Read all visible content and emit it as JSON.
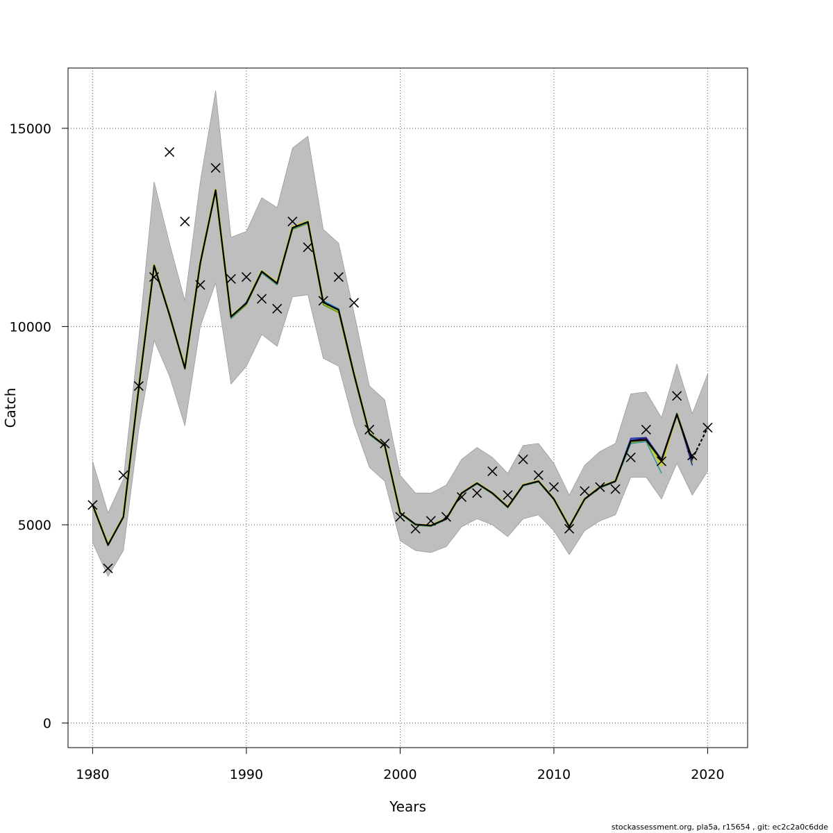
{
  "chart_data": {
    "type": "line",
    "xlabel": "Years",
    "ylabel": "Catch",
    "xlim": [
      1978.4,
      2022.6
    ],
    "ylim": [
      -620,
      16520
    ],
    "x_ticks": [
      1980,
      1990,
      2000,
      2010,
      2020
    ],
    "x_tick_labels": [
      "1980",
      "1990",
      "2000",
      "2010",
      "2020"
    ],
    "y_ticks": [
      0,
      5000,
      10000,
      15000
    ],
    "y_tick_labels": [
      "0",
      "5000",
      "10000",
      "15000"
    ],
    "grid": true,
    "confidence_band": {
      "x": [
        1980,
        1981,
        1982,
        1983,
        1984,
        1985,
        1986,
        1987,
        1988,
        1989,
        1990,
        1991,
        1992,
        1993,
        1994,
        1995,
        1996,
        1997,
        1998,
        1999,
        2000,
        2001,
        2002,
        2003,
        2004,
        2005,
        2006,
        2007,
        2008,
        2009,
        2010,
        2011,
        2012,
        2013,
        2014,
        2015,
        2016,
        2017,
        2018,
        2019,
        2020
      ],
      "lower": [
        4550,
        3700,
        4350,
        7400,
        9650,
        8750,
        7500,
        10000,
        11100,
        8550,
        9000,
        9800,
        9500,
        10750,
        10800,
        9200,
        9000,
        7550,
        6450,
        6100,
        4600,
        4350,
        4300,
        4450,
        4950,
        5150,
        5000,
        4700,
        5150,
        5250,
        4850,
        4250,
        4850,
        5100,
        5250,
        6200,
        6200,
        5650,
        6550,
        5750,
        6350
      ],
      "upper": [
        6600,
        5300,
        6150,
        9700,
        13650,
        12100,
        10650,
        13650,
        15950,
        12250,
        12400,
        13250,
        13000,
        14500,
        14800,
        12450,
        12100,
        10350,
        8500,
        8150,
        6250,
        5800,
        5800,
        6000,
        6650,
        6950,
        6700,
        6300,
        7000,
        7050,
        6550,
        5750,
        6500,
        6850,
        7050,
        8300,
        8350,
        7700,
        9050,
        7800,
        8800
      ]
    },
    "observations": {
      "x": [
        1980,
        1981,
        1982,
        1983,
        1984,
        1985,
        1986,
        1987,
        1988,
        1989,
        1990,
        1991,
        1992,
        1993,
        1994,
        1995,
        1996,
        1997,
        1998,
        1999,
        2000,
        2001,
        2002,
        2003,
        2004,
        2005,
        2006,
        2007,
        2008,
        2009,
        2010,
        2011,
        2012,
        2013,
        2014,
        2015,
        2016,
        2017,
        2018,
        2019,
        2020
      ],
      "y": [
        5500,
        3900,
        6250,
        8500,
        11250,
        14400,
        12650,
        11050,
        14000,
        11200,
        11250,
        10700,
        10450,
        12650,
        12000,
        10650,
        11250,
        10600,
        7400,
        7050,
        5200,
        4900,
        5100,
        5200,
        5700,
        5800,
        6350,
        5750,
        6650,
        6250,
        5950,
        4900,
        5850,
        5950,
        5900,
        6700,
        7400,
        6600,
        8250,
        6750,
        7450
      ]
    },
    "series": [
      {
        "color": "#cccc33",
        "x": [
          1980,
          1981,
          1982,
          1983,
          1984,
          1985,
          1986,
          1987,
          1988,
          1989,
          1990,
          1991,
          1992,
          1993,
          1994,
          1995,
          1996,
          1997,
          1998,
          1999,
          2000,
          2001,
          2002,
          2003,
          2004,
          2005,
          2006,
          2007,
          2008,
          2009,
          2010,
          2011,
          2012,
          2013,
          2014,
          2015,
          2016,
          2017,
          2018,
          2019
        ],
        "y": [
          5500,
          4500,
          5200,
          8450,
          11550,
          10300,
          8950,
          11600,
          13450,
          10250,
          10600,
          11400,
          11100,
          12500,
          12650,
          10600,
          10400,
          8800,
          7300,
          7000,
          5300,
          5000,
          4980,
          5150,
          5800,
          6050,
          5800,
          5450,
          6000,
          6100,
          5650,
          4950,
          5650,
          5950,
          6100,
          7100,
          7150,
          6500,
          7800,
          6550
        ]
      },
      {
        "color": "#669900",
        "x": [
          1980,
          1981,
          1982,
          1983,
          1984,
          1985,
          1986,
          1987,
          1988,
          1989,
          1990,
          1991,
          1992,
          1993,
          1994,
          1995,
          1996,
          1997,
          1998,
          1999,
          2000,
          2001,
          2002,
          2003,
          2004,
          2005,
          2006,
          2007,
          2008,
          2009,
          2010,
          2011,
          2012,
          2013,
          2014,
          2015,
          2016,
          2017,
          2018,
          2019
        ],
        "y": [
          5480,
          4470,
          5180,
          8430,
          11500,
          10260,
          8920,
          11570,
          13400,
          10200,
          10550,
          11350,
          11050,
          12450,
          12600,
          10550,
          10350,
          8750,
          7270,
          6980,
          5280,
          4990,
          4960,
          5130,
          5780,
          6030,
          5780,
          5430,
          5980,
          6080,
          5630,
          4930,
          5630,
          5930,
          6080,
          7060,
          7100,
          6620,
          7780,
          6580
        ]
      },
      {
        "color": "#3399cc",
        "x": [
          1980,
          1981,
          1982,
          1983,
          1984,
          1985,
          1986,
          1987,
          1988,
          1989,
          1990,
          1991,
          1992,
          1993,
          1994,
          1995,
          1996,
          1997,
          1998,
          1999,
          2000,
          2001,
          2002,
          2003,
          2004,
          2005,
          2006,
          2007,
          2008,
          2009,
          2010,
          2011,
          2012,
          2013,
          2014,
          2015,
          2016,
          2017,
          2018,
          2019
        ],
        "y": [
          5490,
          4480,
          5190,
          8440,
          11520,
          10280,
          8930,
          11580,
          13420,
          10230,
          10620,
          11370,
          11070,
          12480,
          12630,
          10650,
          10450,
          8780,
          7290,
          6990,
          5290,
          5000,
          4970,
          5140,
          5790,
          6040,
          5790,
          5440,
          5990,
          6090,
          5640,
          4940,
          5640,
          5940,
          6090,
          7150,
          7180,
          6600,
          7820,
          6500
        ]
      },
      {
        "color": "#339999",
        "x": [
          1980,
          1981,
          1982,
          1983,
          1984,
          1985,
          1986,
          1987,
          1988,
          1989,
          1990,
          1991,
          1992,
          1993,
          1994,
          1995,
          1996,
          1997,
          1998,
          1999,
          2000,
          2001,
          2002,
          2003,
          2004,
          2005,
          2006,
          2007,
          2008,
          2009,
          2010,
          2011,
          2012,
          2013,
          2014,
          2015,
          2016,
          2017
        ],
        "y": [
          5485,
          4475,
          5185,
          8435,
          11510,
          10270,
          8925,
          11575,
          13410,
          10210,
          10580,
          11360,
          11060,
          12470,
          12620,
          10600,
          10400,
          8770,
          7280,
          6985,
          5285,
          4995,
          4965,
          5135,
          5785,
          6035,
          5785,
          5435,
          5985,
          6085,
          5635,
          4935,
          5635,
          5935,
          6085,
          7050,
          7100,
          6300
        ]
      },
      {
        "color": "#2233aa",
        "x": [
          1980,
          1981,
          1982,
          1983,
          1984,
          1985,
          1986,
          1987,
          1988,
          1989,
          1990,
          1991,
          1992,
          1993,
          1994,
          1995,
          1996,
          1997,
          1998,
          1999,
          2000,
          2001,
          2002,
          2003,
          2004,
          2005,
          2006,
          2007,
          2008,
          2009,
          2010,
          2011,
          2012,
          2013,
          2014,
          2015,
          2016,
          2017,
          2018,
          2019
        ],
        "y": [
          5495,
          4485,
          5195,
          8445,
          11530,
          10290,
          8940,
          11590,
          13430,
          10240,
          10600,
          11380,
          11080,
          12490,
          12640,
          10620,
          10430,
          8790,
          7295,
          6995,
          5295,
          5005,
          4975,
          5145,
          5795,
          6045,
          5795,
          5445,
          5995,
          6095,
          5645,
          4945,
          5645,
          5945,
          6095,
          7180,
          7200,
          6650,
          7800,
          6500
        ]
      },
      {
        "color": "#330066",
        "x": [
          2015,
          2016,
          2017,
          2018,
          2019
        ],
        "y": [
          7130,
          7180,
          6600,
          7760,
          6620
        ]
      },
      {
        "color": "#000000",
        "x": [
          1980,
          1981,
          1982,
          1983,
          1984,
          1985,
          1986,
          1987,
          1988,
          1989,
          1990,
          1991,
          1992,
          1993,
          1994,
          1995,
          1996,
          1997,
          1998,
          1999,
          2000,
          2001,
          2002,
          2003,
          2004,
          2005,
          2006,
          2007,
          2008,
          2009,
          2010,
          2011,
          2012,
          2013,
          2014,
          2015,
          2016,
          2017,
          2018,
          2019,
          2020
        ],
        "y": [
          5500,
          4490,
          5200,
          8450,
          11540,
          10300,
          8950,
          11600,
          13440,
          10250,
          10590,
          11390,
          11090,
          12490,
          12640,
          10610,
          10420,
          8800,
          7300,
          7000,
          5300,
          5010,
          4980,
          5150,
          5800,
          6050,
          5800,
          5450,
          6000,
          6100,
          5650,
          4950,
          5650,
          5950,
          6100,
          7110,
          7140,
          6640,
          7790,
          6660,
          7450
        ],
        "dashed_from": 2019
      }
    ]
  },
  "footer": "stockassessment.org, pla5a, r15654 , git: ec2c2a0c6dde"
}
